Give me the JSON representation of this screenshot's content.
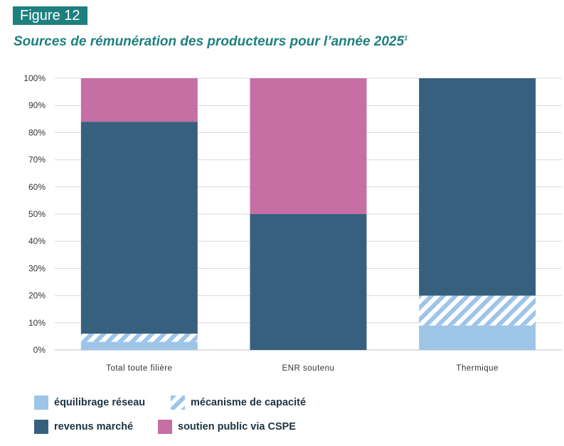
{
  "figure": {
    "label": "Figure 12",
    "title": "Sources de rémunération des producteurs pour l’année 2025",
    "title_sup": "1"
  },
  "legend": {
    "items": [
      {
        "key": "equilibrage",
        "label": "équilibrage réseau"
      },
      {
        "key": "capacite",
        "label": "mécanisme de capacité"
      },
      {
        "key": "marche",
        "label": "revenus marché"
      },
      {
        "key": "cspe",
        "label": "soutien public via CSPE"
      }
    ]
  },
  "colors": {
    "equilibrage": "#9ec5e8",
    "capacite": "#9ec5e8",
    "marche": "#37607f",
    "cspe": "#c56fa4",
    "teal": "#1f7f7f",
    "grid": "#d9d9d9"
  },
  "chart_data": {
    "type": "bar",
    "stacked": true,
    "categories": [
      "Total toute filière",
      "ENR soutenu",
      "Thermique"
    ],
    "series": [
      {
        "name": "équilibrage réseau",
        "key": "equilibrage",
        "values": [
          3,
          0,
          9
        ]
      },
      {
        "name": "mécanisme de capacité",
        "key": "capacite",
        "pattern": "hatch",
        "values": [
          3,
          0,
          11
        ]
      },
      {
        "name": "revenus marché",
        "key": "marche",
        "values": [
          78,
          50,
          80
        ]
      },
      {
        "name": "soutien public via CSPE",
        "key": "cspe",
        "values": [
          16,
          50,
          0
        ]
      }
    ],
    "y_ticks": [
      "0%",
      "10%",
      "20%",
      "30%",
      "40%",
      "50%",
      "60%",
      "70%",
      "80%",
      "90%",
      "100%"
    ],
    "ylim": [
      0,
      100
    ],
    "grid": true,
    "legend_position": "bottom"
  }
}
